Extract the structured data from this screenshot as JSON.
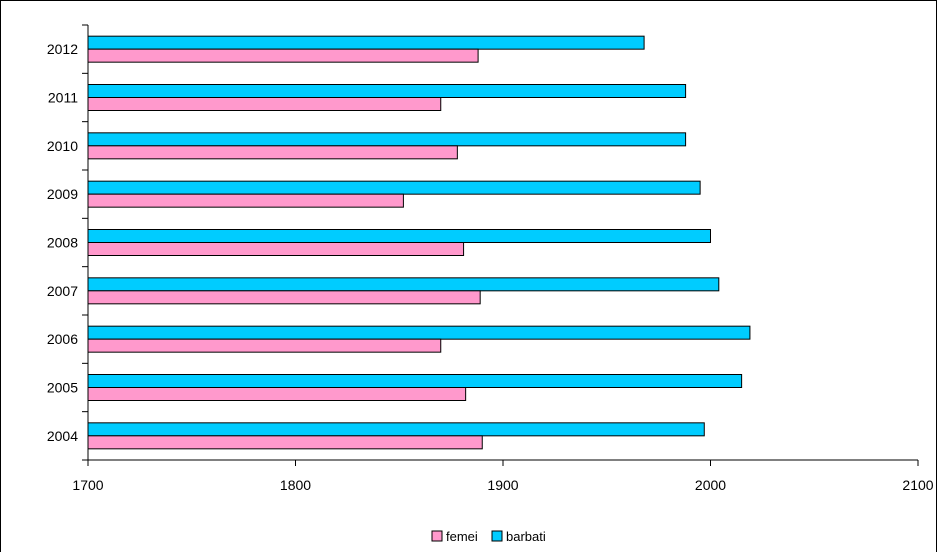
{
  "chart_data": {
    "type": "bar",
    "orientation": "horizontal",
    "categories": [
      "2004",
      "2005",
      "2006",
      "2007",
      "2008",
      "2009",
      "2010",
      "2011",
      "2012"
    ],
    "series": [
      {
        "name": "femei",
        "color": "#FF99CC",
        "values": [
          1890,
          1882,
          1870,
          1889,
          1881,
          1852,
          1878,
          1870,
          1888
        ]
      },
      {
        "name": "barbati",
        "color": "#00CCFF",
        "values": [
          1997,
          2015,
          2019,
          2004,
          2000,
          1995,
          1988,
          1988,
          1968
        ]
      }
    ],
    "xlim": [
      1700,
      2100
    ],
    "xticks": [
      "1700",
      "1800",
      "1900",
      "2000",
      "2100"
    ],
    "grid": false,
    "legend_position": "bottom"
  }
}
